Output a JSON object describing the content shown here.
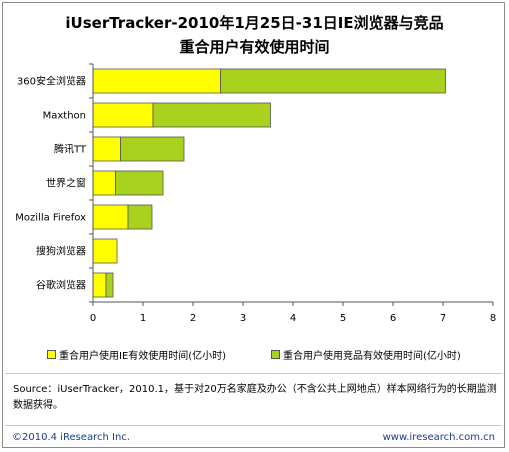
{
  "title_line1": "iUserTracker-2010年1月25日-31日IE浏览器与竞品",
  "title_line2": "重合用户有效使用时间",
  "chart_data": {
    "type": "bar",
    "orientation": "horizontal",
    "stacked": true,
    "categories": [
      "360安全浏览器",
      "Maxthon",
      "腾讯TT",
      "世界之窗",
      "Mozilla Firefox",
      "搜狗浏览器",
      "谷歌浏览器"
    ],
    "series": [
      {
        "name": "重合用户使用IE有效使用时间(亿小时)",
        "color": "#ffff00",
        "values": [
          2.55,
          1.2,
          0.55,
          0.45,
          0.7,
          0.48,
          0.26
        ]
      },
      {
        "name": "重合用户使用竞品有效使用时间(亿小时)",
        "color": "#a8d21e",
        "values": [
          4.5,
          2.35,
          1.27,
          0.95,
          0.48,
          0.0,
          0.14
        ]
      }
    ],
    "xlim": [
      0,
      8
    ],
    "xticks": [
      "0",
      "1",
      "2",
      "3",
      "4",
      "5",
      "6",
      "7",
      "8"
    ],
    "grid": false,
    "legend_position": "bottom"
  },
  "source_text": "Source：iUserTracker，2010.1，基于对20万名家庭及办公（不含公共上网地点）样本网络行为的长期监测数据获得。",
  "copyright": "©2010.4 iResearch Inc.",
  "website": "www.iresearch.com.cn"
}
